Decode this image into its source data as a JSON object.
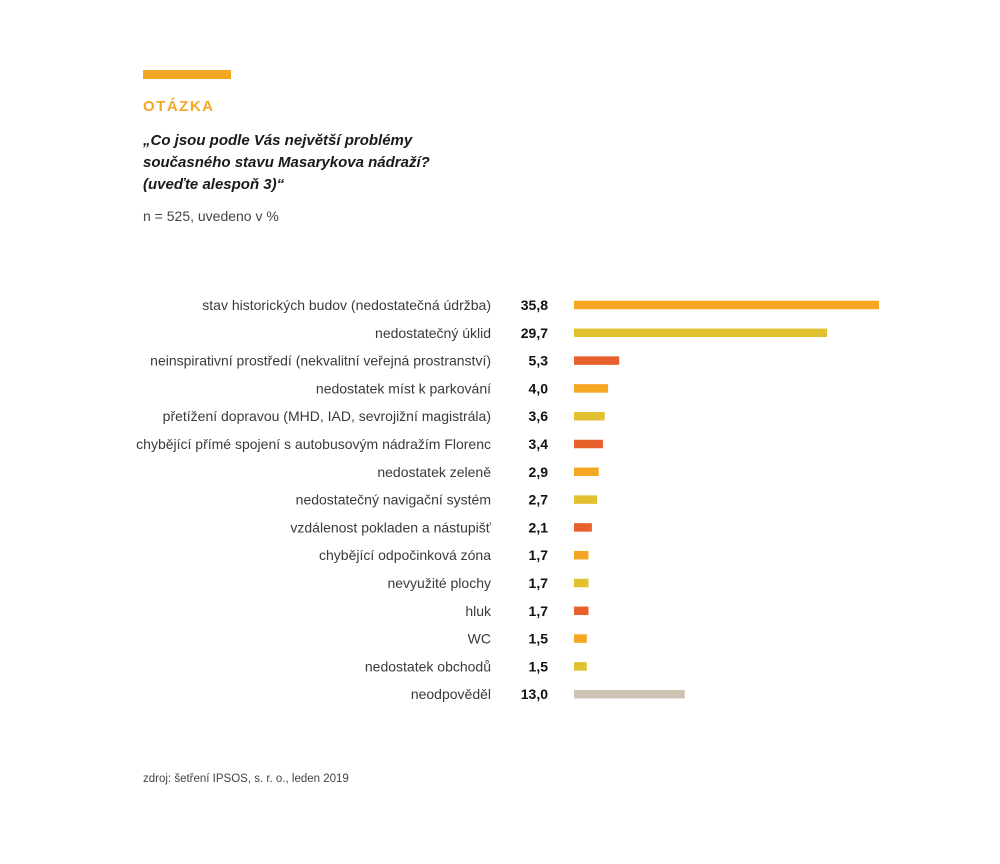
{
  "header": {
    "label": "OTÁZKA",
    "question_lines": [
      "„Co jsou podle Vás největší problémy",
      "současného stavu Masarykova nádraží?",
      "(uveďte alespoň 3)“"
    ],
    "sample": "n = 525, uvedeno v %"
  },
  "footer": {
    "source": "zdroj: šetření IPSOS, s. r. o., leden 2019"
  },
  "colors": {
    "accent": "#F5A623",
    "orange": "#F5A623",
    "yellow": "#E2C130",
    "red": "#E8602C",
    "gray": "#CDC3B3",
    "label": "#F5A623"
  },
  "chart_data": {
    "type": "bar",
    "orientation": "horizontal",
    "categories": [
      "stav historických budov (nedostatečná údržba)",
      "nedostatečný úklid",
      "neinspirativní prostředí (nekvalitní veřejná prostranství)",
      "nedostatek míst k parkování",
      "přetížení dopravou (MHD, IAD, sevrojižní magistrála)",
      "chybějící přímé spojení s autobusovým nádražím Florenc",
      "nedostatek zeleně",
      "nedostatečný navigační systém",
      "vzdálenost pokladen a nástupišť",
      "chybějící odpočinková zóna",
      "nevyužité plochy",
      "hluk",
      "WC",
      "nedostatek obchodů",
      "neodpověděl"
    ],
    "values": [
      35.8,
      29.7,
      5.3,
      4.0,
      3.6,
      3.4,
      2.9,
      2.7,
      2.1,
      1.7,
      1.7,
      1.7,
      1.5,
      1.5,
      13.0
    ],
    "value_labels": [
      "35,8",
      "29,7",
      "5,3",
      "4,0",
      "3,6",
      "3,4",
      "2,9",
      "2,7",
      "2,1",
      "1,7",
      "1,7",
      "1,7",
      "1,5",
      "1,5",
      "13,0"
    ],
    "bar_colors": [
      "#F5A623",
      "#E2C130",
      "#E8602C",
      "#F5A623",
      "#E2C130",
      "#E8602C",
      "#F5A623",
      "#E2C130",
      "#E8602C",
      "#F5A623",
      "#E2C130",
      "#E8602C",
      "#F5A623",
      "#E2C130",
      "#CDC3B3"
    ],
    "xlim": [
      0,
      35.8
    ],
    "grid": false,
    "title": "",
    "xlabel": "",
    "ylabel": ""
  }
}
